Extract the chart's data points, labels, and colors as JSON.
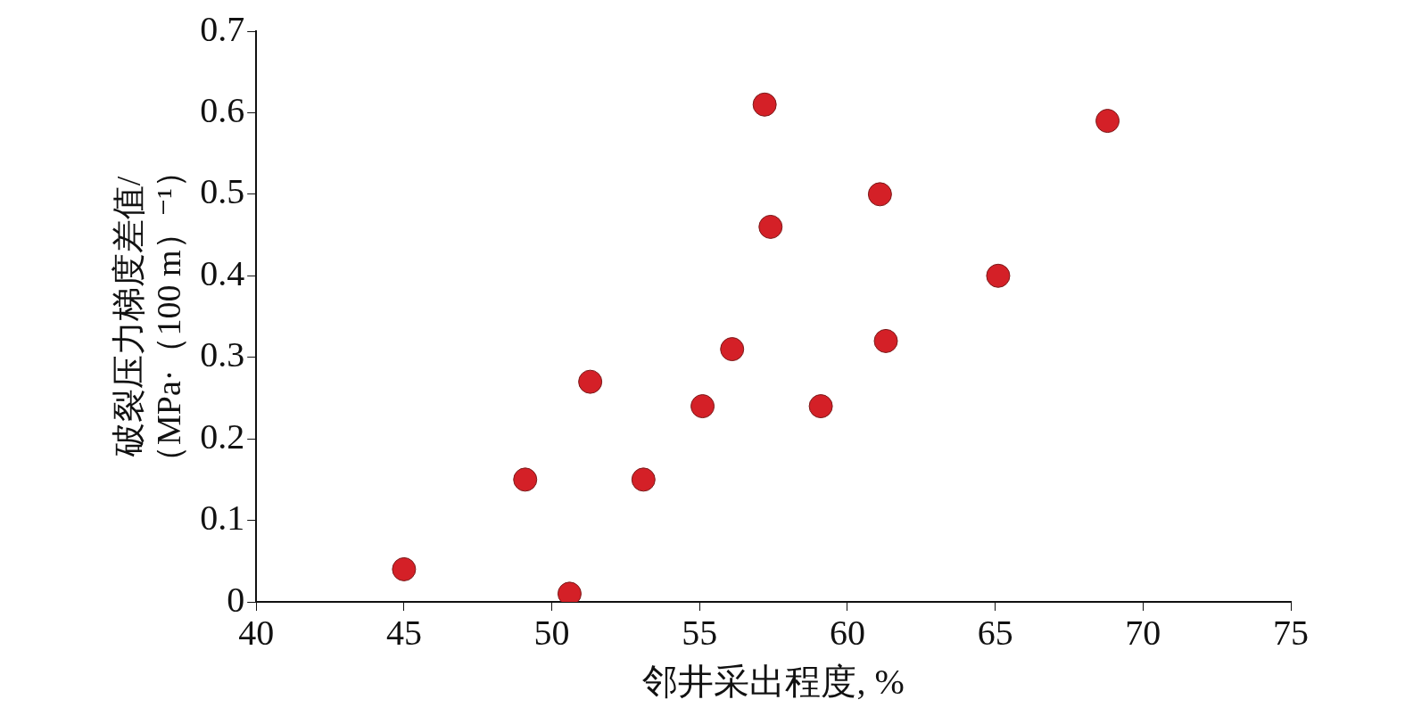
{
  "chart_data": {
    "type": "scatter",
    "xlabel": "邻井采出程度, %",
    "ylabel": "破裂压力梯度差值/\n（MPa·（100 m）⁻¹）",
    "x": [
      45.0,
      49.1,
      50.6,
      51.3,
      53.1,
      55.1,
      56.1,
      57.2,
      57.4,
      59.1,
      61.1,
      61.3,
      65.1,
      68.8
    ],
    "series": [
      {
        "color": "#d42027",
        "values": [
          0.04,
          0.15,
          0.01,
          0.27,
          0.15,
          0.24,
          0.31,
          0.61,
          0.46,
          0.24,
          0.5,
          0.32,
          0.4,
          0.59
        ]
      }
    ],
    "xlim": [
      40,
      75
    ],
    "xticks": [
      40,
      45,
      50,
      55,
      60,
      65,
      70,
      75
    ],
    "ylim": [
      0,
      0.7
    ],
    "yticks": [
      0,
      0.1,
      0.2,
      0.3,
      0.4,
      0.5,
      0.6,
      0.7
    ],
    "marker": "circle",
    "legend": false
  }
}
